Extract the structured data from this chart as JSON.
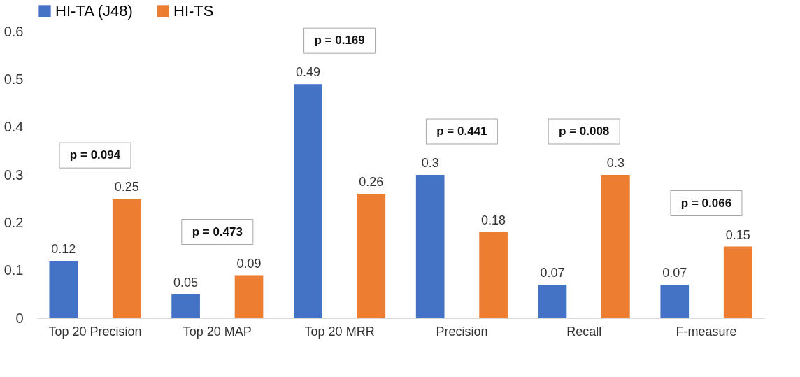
{
  "chart_data": {
    "type": "bar",
    "categories": [
      "Top 20 Precision",
      "Top 20 MAP",
      "Top 20 MRR",
      "Precision",
      "Recall",
      "F-measure"
    ],
    "series": [
      {
        "name": "HI-TA (J48)",
        "color": "#4472c4",
        "values": [
          0.12,
          0.05,
          0.49,
          0.3,
          0.07,
          0.07
        ]
      },
      {
        "name": "HI-TS",
        "color": "#ed7d31",
        "values": [
          0.25,
          0.09,
          0.26,
          0.18,
          0.3,
          0.15
        ]
      }
    ],
    "ylim": [
      0,
      0.6
    ],
    "yticks": [
      0,
      0.1,
      0.2,
      0.3,
      0.4,
      0.5,
      0.6
    ],
    "data_labels": true,
    "grid": false,
    "legend": "top",
    "annotations": [
      "p = 0.094",
      "p = 0.473",
      "p = 0.169",
      "p = 0.441",
      "p = 0.008",
      "p = 0.066"
    ]
  }
}
